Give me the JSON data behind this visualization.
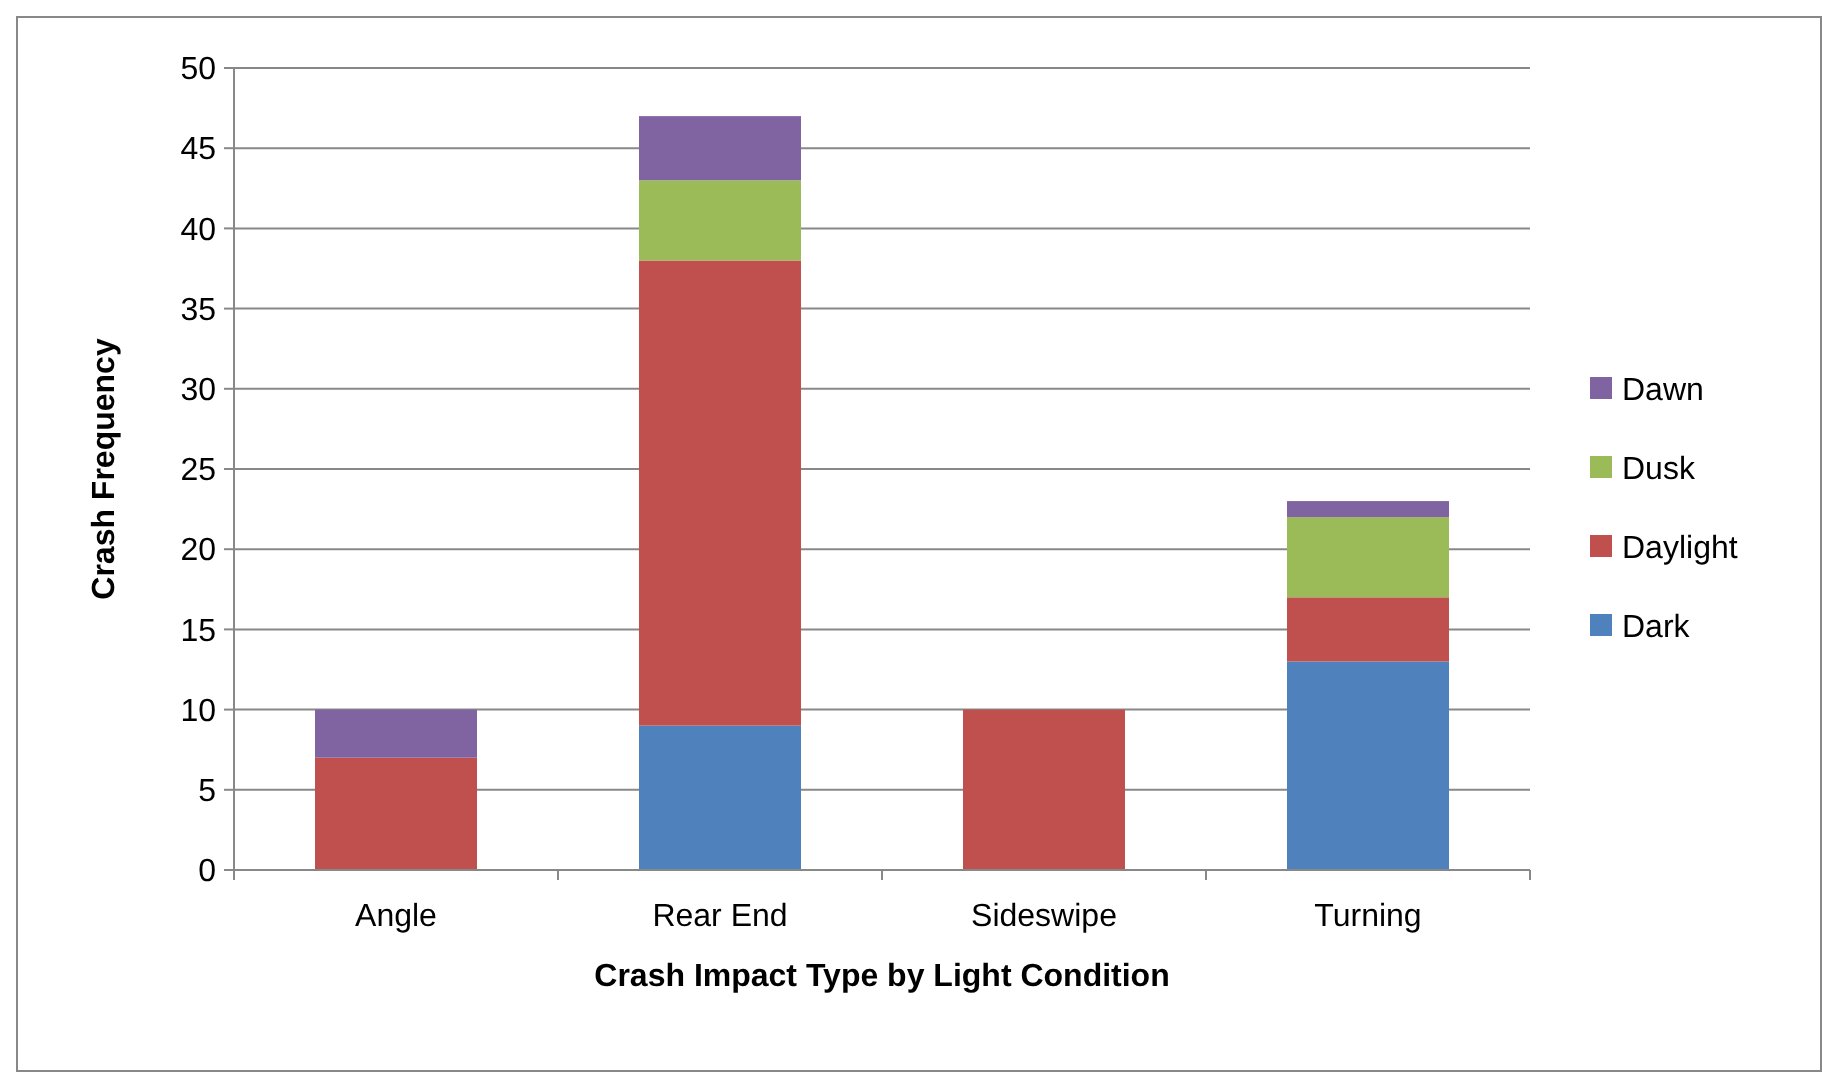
{
  "chart_data": {
    "type": "bar",
    "stacked": true,
    "xlabel": "Crash Impact Type by Light Condition",
    "ylabel": "Crash Frequency",
    "categories": [
      "Angle",
      "Rear End",
      "Sideswipe",
      "Turning"
    ],
    "series": [
      {
        "name": "Dark",
        "color": "#4f81bd",
        "values": [
          0,
          9,
          0,
          13
        ]
      },
      {
        "name": "Daylight",
        "color": "#c0504d",
        "values": [
          7,
          29,
          10,
          4
        ]
      },
      {
        "name": "Dusk",
        "color": "#9bbb59",
        "values": [
          0,
          5,
          0,
          5
        ]
      },
      {
        "name": "Dawn",
        "color": "#8064a2",
        "values": [
          3,
          4,
          0,
          1
        ]
      }
    ],
    "ylim": [
      0,
      50
    ],
    "yticks": [
      0,
      5,
      10,
      15,
      20,
      25,
      30,
      35,
      40,
      45,
      50
    ],
    "grid": "y",
    "legend": "right"
  }
}
